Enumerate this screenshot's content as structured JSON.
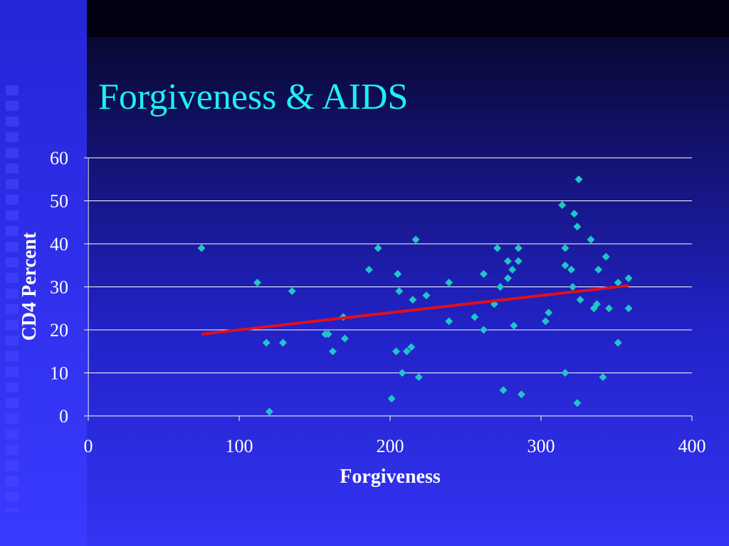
{
  "chart_data": {
    "type": "scatter",
    "title": "Forgiveness & AIDS",
    "x_label": "Forgiveness",
    "y_label": "CD4 Percent",
    "xlim": [
      0,
      400
    ],
    "xticks": [
      0,
      100,
      200,
      300,
      400
    ],
    "ylim": [
      0,
      60
    ],
    "yticks": [
      0,
      10,
      20,
      30,
      40,
      50,
      60
    ],
    "grid": true,
    "series": [
      {
        "color": "#1fc6c6",
        "x": [
          75,
          112,
          118,
          120,
          129,
          135,
          157,
          159,
          162,
          169,
          170,
          186,
          192,
          201,
          204,
          205,
          206,
          208,
          211,
          214,
          215,
          217,
          219,
          224,
          239,
          239,
          256,
          262,
          262,
          269,
          271,
          273,
          275,
          278,
          278,
          281,
          282,
          285,
          285,
          287,
          303,
          305,
          314,
          316,
          316,
          316,
          320,
          321,
          322,
          324,
          324,
          325,
          326,
          333,
          335,
          337,
          338,
          341,
          343,
          345,
          351,
          351,
          358,
          358
        ],
        "y": [
          39,
          31,
          17,
          1,
          17,
          29,
          19,
          19,
          15,
          23,
          18,
          34,
          39,
          4,
          15,
          33,
          29,
          10,
          15,
          16,
          27,
          41,
          9,
          28,
          31,
          22,
          23,
          33,
          20,
          26,
          39,
          30,
          6,
          36,
          32,
          34,
          21,
          39,
          36,
          5,
          22,
          24,
          49,
          39,
          35,
          10,
          34,
          30,
          47,
          44,
          3,
          55,
          27,
          41,
          25,
          26,
          34,
          9,
          37,
          25,
          31,
          17,
          32,
          25
        ]
      }
    ],
    "trendline": {
      "color": "#e0101a",
      "x": [
        75,
        358
      ],
      "y": [
        19,
        30.3
      ]
    }
  }
}
